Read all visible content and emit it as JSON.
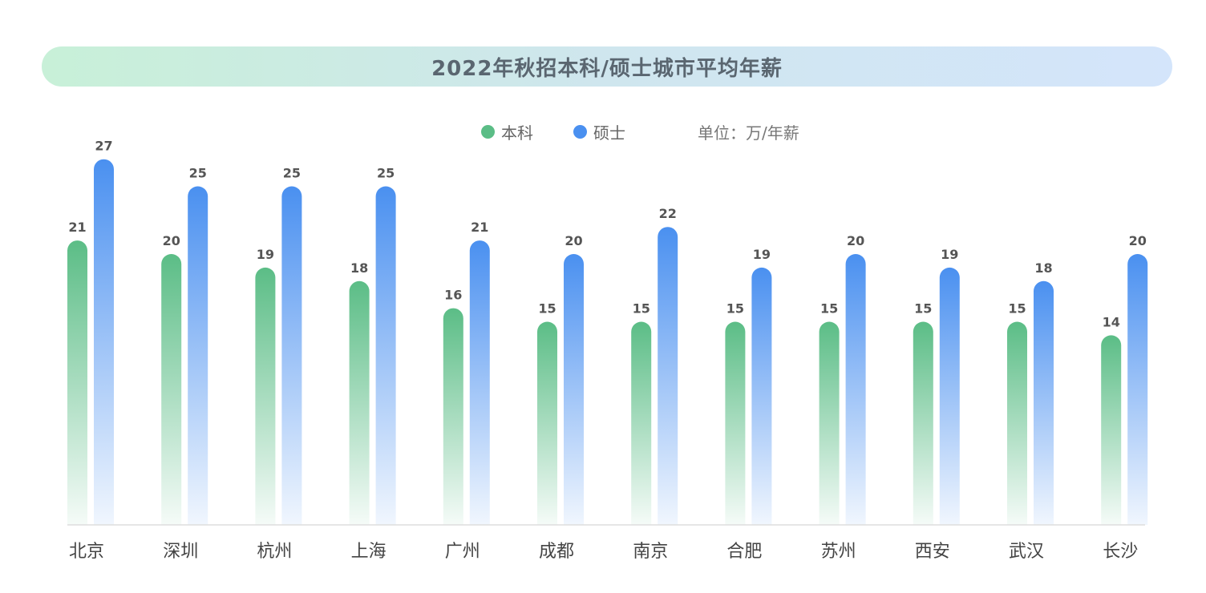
{
  "title": "2022年秋招本科/硕士城市平均年薪",
  "legend": {
    "bachelor_label": "本科",
    "master_label": "硕士",
    "unit_label": "单位：万/年薪"
  },
  "colors": {
    "bachelor": "#5bbd86",
    "master": "#4a90f0",
    "axis": "#dddddd",
    "label": "#555555"
  },
  "chart_data": {
    "type": "bar",
    "title": "2022年秋招本科/硕士城市平均年薪",
    "categories": [
      "北京",
      "深圳",
      "杭州",
      "上海",
      "广州",
      "成都",
      "南京",
      "合肥",
      "苏州",
      "西安",
      "武汉",
      "长沙"
    ],
    "series": [
      {
        "name": "本科",
        "values": [
          21,
          20,
          19,
          18,
          16,
          15,
          15,
          15,
          15,
          15,
          15,
          14
        ]
      },
      {
        "name": "硕士",
        "values": [
          27,
          25,
          25,
          25,
          21,
          20,
          22,
          19,
          20,
          19,
          18,
          20
        ]
      }
    ],
    "unit": "单位：万/年薪",
    "ylim": [
      0,
      27
    ],
    "grid": false,
    "legend_position": "top-center"
  }
}
